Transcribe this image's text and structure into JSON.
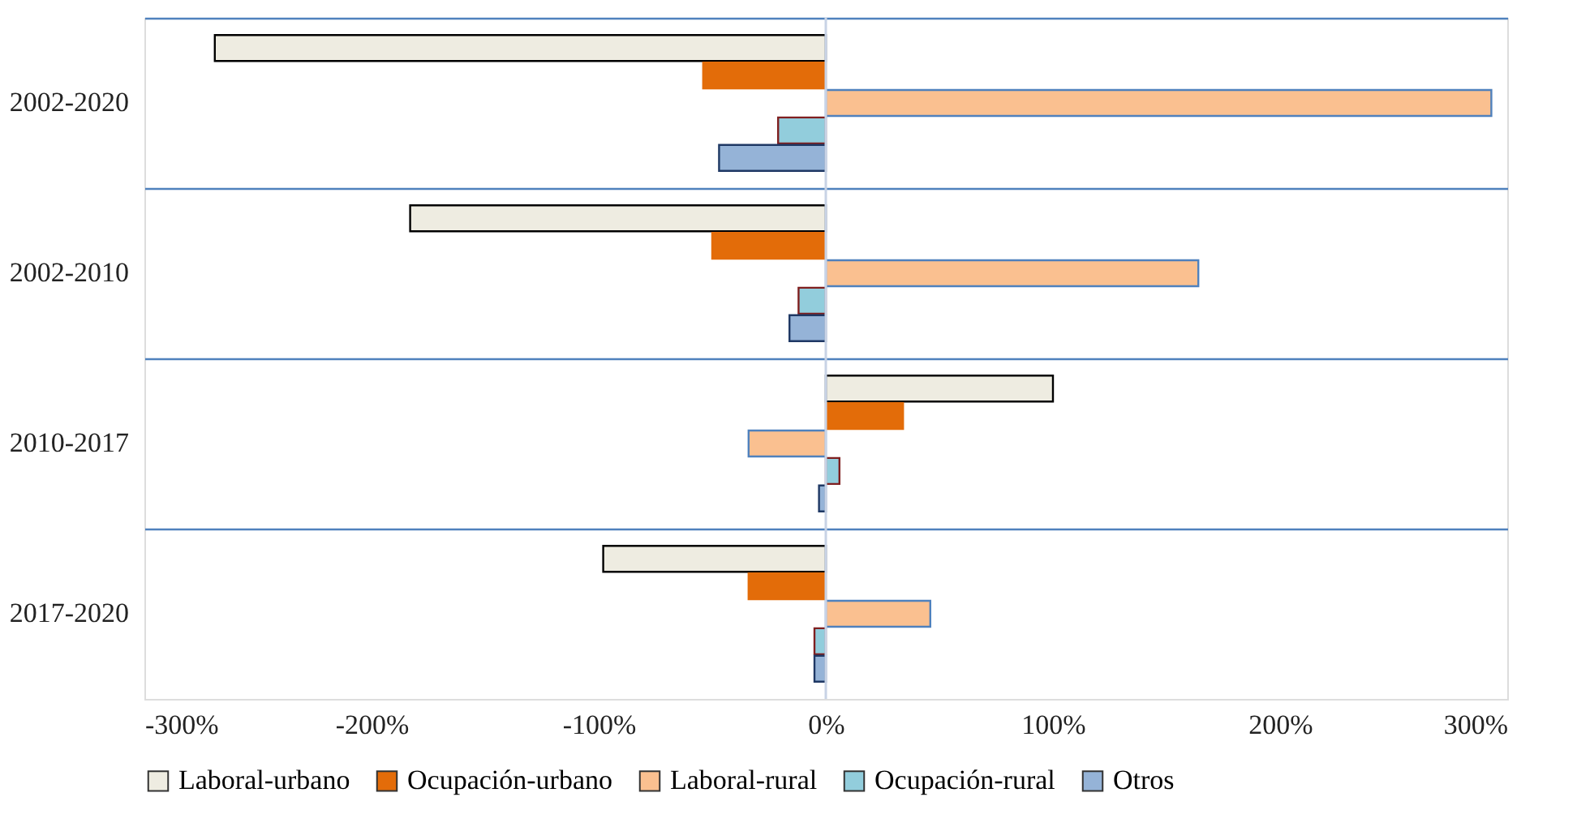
{
  "chart_data": {
    "type": "bar",
    "orientation": "horizontal",
    "categories": [
      "2002-2020",
      "2002-2010",
      "2010-2017",
      "2017-2020"
    ],
    "series": [
      {
        "name": "Laboral-urbano",
        "color": "#eeece1",
        "values": [
          -269,
          -183,
          100,
          -98
        ]
      },
      {
        "name": "Ocupación-urbano",
        "color": "#e36c09",
        "values": [
          -54,
          -50,
          34,
          -34
        ]
      },
      {
        "name": "Laboral-rural",
        "color": "#fac090",
        "values": [
          293,
          164,
          -34,
          46
        ]
      },
      {
        "name": "Ocupación-rural",
        "color": "#92cddc",
        "values": [
          -21,
          -12,
          6,
          -5
        ]
      },
      {
        "name": "Otros",
        "color": "#95b3d7",
        "values": [
          -47,
          -16,
          -3,
          -5
        ]
      }
    ],
    "xlim": [
      -300,
      300
    ],
    "xticks": [
      {
        "value": -300,
        "label": "-300%"
      },
      {
        "value": -200,
        "label": "-200%"
      },
      {
        "value": -100,
        "label": "-100%"
      },
      {
        "value": 0,
        "label": "0%"
      },
      {
        "value": 100,
        "label": "100%"
      },
      {
        "value": 200,
        "label": "200%"
      },
      {
        "value": 300,
        "label": "300%"
      }
    ],
    "ref_lines": [
      {
        "axis": "x",
        "value": 0,
        "color": "#c8d3e6"
      }
    ],
    "grid": "y",
    "legend": "bottom"
  }
}
